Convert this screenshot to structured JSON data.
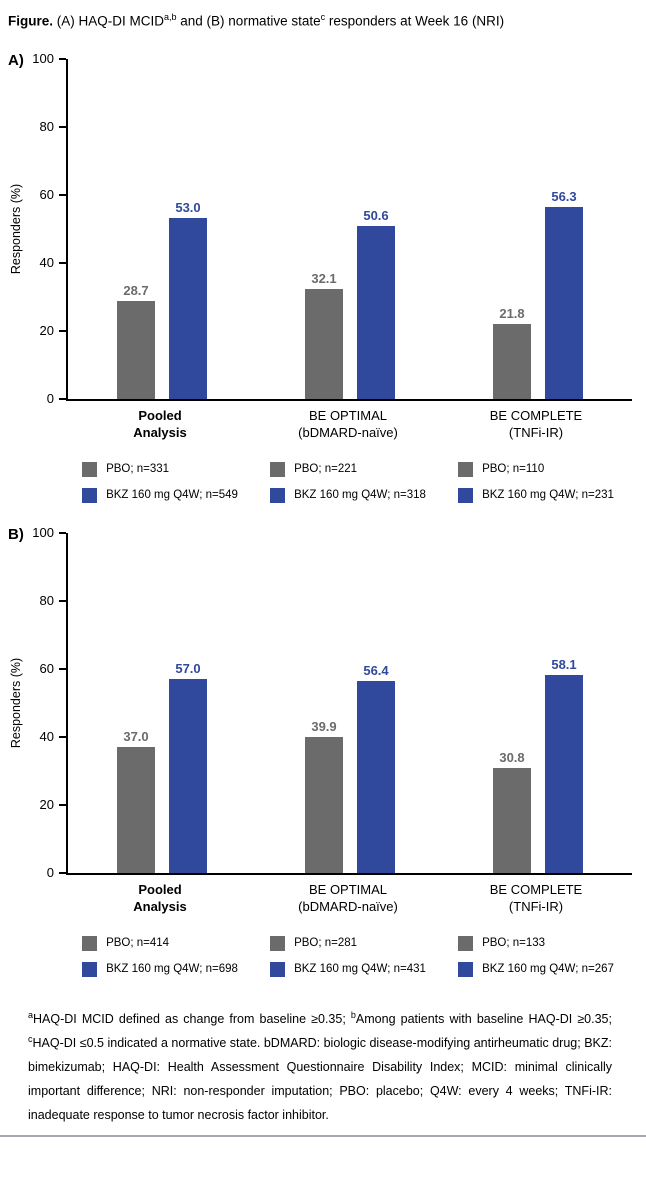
{
  "figure_title": {
    "prefix": "Figure.",
    "seg1": " (A) HAQ-DI MCID",
    "sup1": "a,b",
    "seg2": " and (B) normative state",
    "sup2": "c",
    "seg3": " responders at Week 16 (NRI)"
  },
  "colors": {
    "pbo_gray": "#6b6b6b",
    "bkz_blue": "#30499c",
    "axis_black": "#000000"
  },
  "chart_data": [
    {
      "panel_label": "A)",
      "type": "bar",
      "ylabel": "Responders (%)",
      "ylim": [
        0,
        100
      ],
      "yticks": [
        0,
        20,
        40,
        60,
        80,
        100
      ],
      "grid": false,
      "legend_position": "bottom",
      "categories": [
        {
          "line1": "Pooled",
          "line2": "Analysis",
          "bold": true
        },
        {
          "line1": "BE OPTIMAL",
          "line2": "(bDMARD-naïve)",
          "bold": false
        },
        {
          "line1": "BE COMPLETE",
          "line2": "(TNFi-IR)",
          "bold": false
        }
      ],
      "series": [
        {
          "name": "PBO",
          "color": "#6b6b6b",
          "values": [
            28.7,
            32.1,
            21.8
          ],
          "labels": [
            "28.7",
            "32.1",
            "21.8"
          ]
        },
        {
          "name": "BKZ 160 mg Q4W",
          "color": "#30499c",
          "values": [
            53.0,
            50.6,
            56.3
          ],
          "labels": [
            "53.0",
            "50.6",
            "56.3"
          ]
        }
      ],
      "legend": [
        [
          "PBO; n=331",
          "BKZ 160 mg Q4W; n=549"
        ],
        [
          "PBO; n=221",
          "BKZ 160 mg Q4W; n=318"
        ],
        [
          "PBO; n=110",
          "BKZ 160 mg Q4W; n=231"
        ]
      ]
    },
    {
      "panel_label": "B)",
      "type": "bar",
      "ylabel": "Responders (%)",
      "ylim": [
        0,
        100
      ],
      "yticks": [
        0,
        20,
        40,
        60,
        80,
        100
      ],
      "grid": false,
      "legend_position": "bottom",
      "categories": [
        {
          "line1": "Pooled",
          "line2": "Analysis",
          "bold": true
        },
        {
          "line1": "BE OPTIMAL",
          "line2": "(bDMARD-naïve)",
          "bold": false
        },
        {
          "line1": "BE COMPLETE",
          "line2": "(TNFi-IR)",
          "bold": false
        }
      ],
      "series": [
        {
          "name": "PBO",
          "color": "#6b6b6b",
          "values": [
            37.0,
            39.9,
            30.8
          ],
          "labels": [
            "37.0",
            "39.9",
            "30.8"
          ]
        },
        {
          "name": "BKZ 160 mg Q4W",
          "color": "#30499c",
          "values": [
            57.0,
            56.4,
            58.1
          ],
          "labels": [
            "57.0",
            "56.4",
            "58.1"
          ]
        }
      ],
      "legend": [
        [
          "PBO; n=414",
          "BKZ 160 mg Q4W; n=698"
        ],
        [
          "PBO; n=281",
          "BKZ 160 mg Q4W; n=431"
        ],
        [
          "PBO; n=133",
          "BKZ 160 mg Q4W; n=267"
        ]
      ]
    }
  ],
  "footnote": {
    "sup_a": "a",
    "seg_a": "HAQ-DI MCID defined as change from baseline ≥0.35; ",
    "sup_b": "b",
    "seg_b": "Among patients with baseline HAQ-DI ≥0.35; ",
    "sup_c": "c",
    "seg_c": "HAQ-DI ≤0.5 indicated a normative state. bDMARD: biologic disease-modifying antirheumatic drug; BKZ: bimekizumab; HAQ-DI: Health Assessment Questionnaire Disability Index; MCID: minimal clinically important difference; NRI: non-responder imputation; PBO: placebo; Q4W: every 4 weeks; TNFi-IR: inadequate response to tumor necrosis factor inhibitor."
  }
}
